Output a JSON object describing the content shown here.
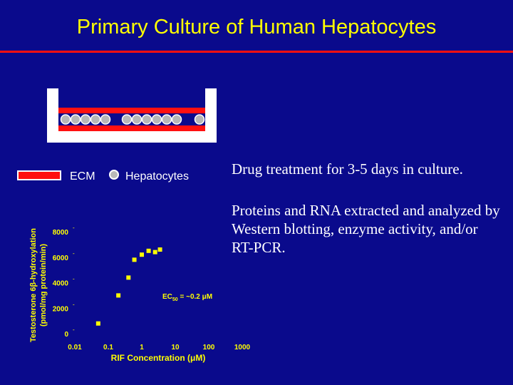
{
  "slide": {
    "title": "Primary Culture of Human Hepatocytes"
  },
  "colors": {
    "background": "#0a0a8c",
    "title": "#ffff00",
    "accent_red": "#ff1010",
    "text": "#ffffff",
    "hepatocyte": "#b8b8b8",
    "data_points": "#ffff00"
  },
  "legend": {
    "ecm_label": "ECM",
    "hepatocytes_label": "Hepatocytes"
  },
  "notes": {
    "treatment": "Drug treatment for 3-5 days in culture.",
    "analysis": "Proteins and RNA extracted and analyzed by Western blotting, enzyme activity, and/or RT-PCR."
  },
  "chart_data": {
    "type": "scatter",
    "title": "",
    "xlabel": "RIF Concentration (μM)",
    "ylabel_line1": "Testosterone 6β-hydroxylation",
    "ylabel_line2": "(pmol/mg protein/min)",
    "x_scale": "log",
    "xlim": [
      0.01,
      1000
    ],
    "ylim": [
      0,
      8000
    ],
    "x_ticks": [
      "0.01",
      "0.1",
      "1",
      "10",
      "100",
      "1000"
    ],
    "y_ticks": [
      "0",
      "2000",
      "4000",
      "6000",
      "8000"
    ],
    "annotation_main": "EC",
    "annotation_sub": "50",
    "annotation_rest": " = ~0.2 μM",
    "series": [
      {
        "x": [
          0.05,
          0.2,
          0.4,
          0.6,
          1.0,
          1.6,
          2.5,
          3.5
        ],
        "y": [
          800,
          3000,
          4400,
          5800,
          6200,
          6500,
          6400,
          6600
        ]
      }
    ]
  }
}
